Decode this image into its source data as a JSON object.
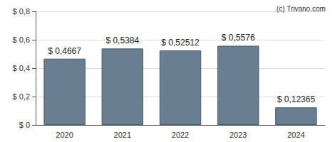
{
  "chart_data": {
    "type": "bar",
    "title": "(c) Trivano.com",
    "categories": [
      "2020",
      "2021",
      "2022",
      "2023",
      "2024"
    ],
    "values": [
      0.4667,
      0.5384,
      0.52512,
      0.5576,
      0.12365
    ],
    "value_labels": [
      "$ 0,4667",
      "$ 0,5384",
      "$ 0,52512",
      "$ 0,5576",
      "$ 0,12365"
    ],
    "data_labels": true,
    "color": "#687f92",
    "ylim": [
      0,
      0.8
    ],
    "yticks": [
      {
        "value": 0,
        "label": "$ 0"
      },
      {
        "value": 0.2,
        "label": "$ 0,2"
      },
      {
        "value": 0.4,
        "label": "$ 0,4"
      },
      {
        "value": 0.6,
        "label": "$ 0,6"
      },
      {
        "value": 0.8,
        "label": "$ 0,8"
      }
    ],
    "grid": true
  }
}
